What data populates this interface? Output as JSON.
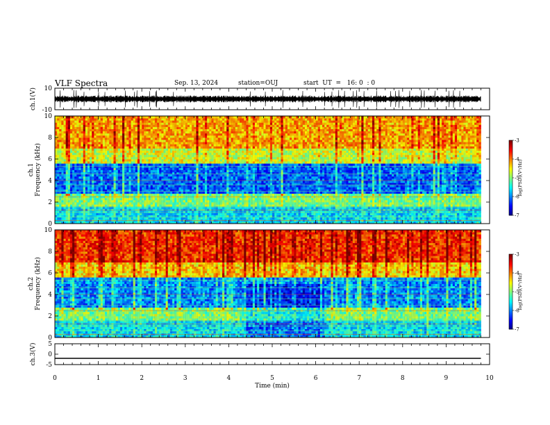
{
  "header": {
    "title": "VLF Spectra",
    "date": "Sep. 13, 2024",
    "station": "station=OUJ",
    "start": "start  UT  =   16: 0  : 0"
  },
  "chart_data": [
    {
      "type": "line",
      "panel": "ch1-waveform",
      "ylabel": "ch.1(V)",
      "ylim": [
        -10,
        10
      ],
      "yticks": [
        "10",
        "-10"
      ],
      "xlim": [
        0,
        10
      ],
      "series": [
        {
          "x": [
            0,
            9.8
          ],
          "y": [
            0,
            0
          ]
        }
      ]
    },
    {
      "type": "heatmap",
      "panel": "ch1-spectrogram",
      "ylabel": "ch.1\nFrequency  (kHz)",
      "ylim": [
        0,
        10
      ],
      "yticks": [
        "0",
        "2",
        "4",
        "6",
        "8",
        "10"
      ],
      "xlim": [
        0,
        10
      ],
      "data_end_min": 9.8,
      "colorbar": {
        "label": "log(PSD)(V²/Hz)",
        "range": [
          -7,
          -3
        ],
        "ticks": [
          "-3",
          "-4",
          "-5",
          "-6",
          "-7"
        ]
      }
    },
    {
      "type": "heatmap",
      "panel": "ch2-spectrogram",
      "ylabel": "ch.2\nFrequency  (kHz)",
      "ylim": [
        0,
        10
      ],
      "yticks": [
        "0",
        "2",
        "4",
        "6",
        "8",
        "10"
      ],
      "xlim": [
        0,
        10
      ],
      "data_end_min": 9.8,
      "colorbar": {
        "label": "log(PSD)(V²/Hz)",
        "range": [
          -7,
          -3
        ],
        "ticks": [
          "-3",
          "-4",
          "-5",
          "-6",
          "-7"
        ]
      }
    },
    {
      "type": "line",
      "panel": "ch3-waveform",
      "ylabel": "ch.3(V)",
      "ylim": [
        -5,
        5
      ],
      "yticks": [
        "5",
        "0",
        "-5"
      ],
      "xlim": [
        0,
        10
      ],
      "xlabel": "Time  (min)",
      "xticks": [
        "0",
        "1",
        "2",
        "3",
        "4",
        "5",
        "6",
        "7",
        "8",
        "9",
        "10"
      ],
      "series": [
        {
          "x": [
            0,
            9.8
          ],
          "y": [
            -2,
            -2
          ]
        }
      ]
    }
  ],
  "colors": {
    "colormap": [
      "#00007f",
      "#0000ff",
      "#007fff",
      "#00ffff",
      "#7fff7f",
      "#ffff00",
      "#ff7f00",
      "#ff0000",
      "#7f0000"
    ]
  }
}
